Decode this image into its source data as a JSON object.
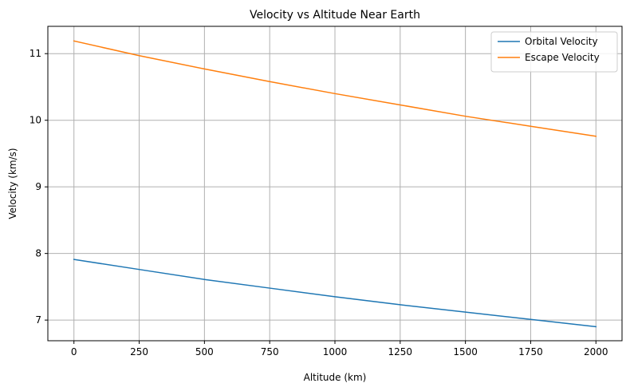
{
  "chart_data": {
    "type": "line",
    "title": "Velocity vs Altitude Near Earth",
    "xlabel": "Altitude (km)",
    "ylabel": "Velocity (km/s)",
    "xlim": [
      -100,
      2100
    ],
    "ylim": [
      6.69,
      11.41
    ],
    "xticks": [
      0,
      250,
      500,
      750,
      1000,
      1250,
      1500,
      1750,
      2000
    ],
    "xtick_labels": [
      "0",
      "250",
      "500",
      "750",
      "1000",
      "1250",
      "1500",
      "1750",
      "2000"
    ],
    "yticks": [
      7,
      8,
      9,
      10,
      11
    ],
    "ytick_labels": [
      "7",
      "8",
      "9",
      "10",
      "11"
    ],
    "grid": true,
    "legend_position": "top-right",
    "x": [
      0,
      250,
      500,
      750,
      1000,
      1250,
      1500,
      1750,
      2000
    ],
    "series": [
      {
        "name": "Orbital Velocity",
        "color": "#1f77b4",
        "values": [
          7.91,
          7.76,
          7.61,
          7.48,
          7.35,
          7.23,
          7.12,
          7.01,
          6.9
        ]
      },
      {
        "name": "Escape Velocity",
        "color": "#ff7f0e",
        "values": [
          11.19,
          10.97,
          10.77,
          10.58,
          10.4,
          10.23,
          10.06,
          9.91,
          9.76
        ]
      }
    ]
  }
}
